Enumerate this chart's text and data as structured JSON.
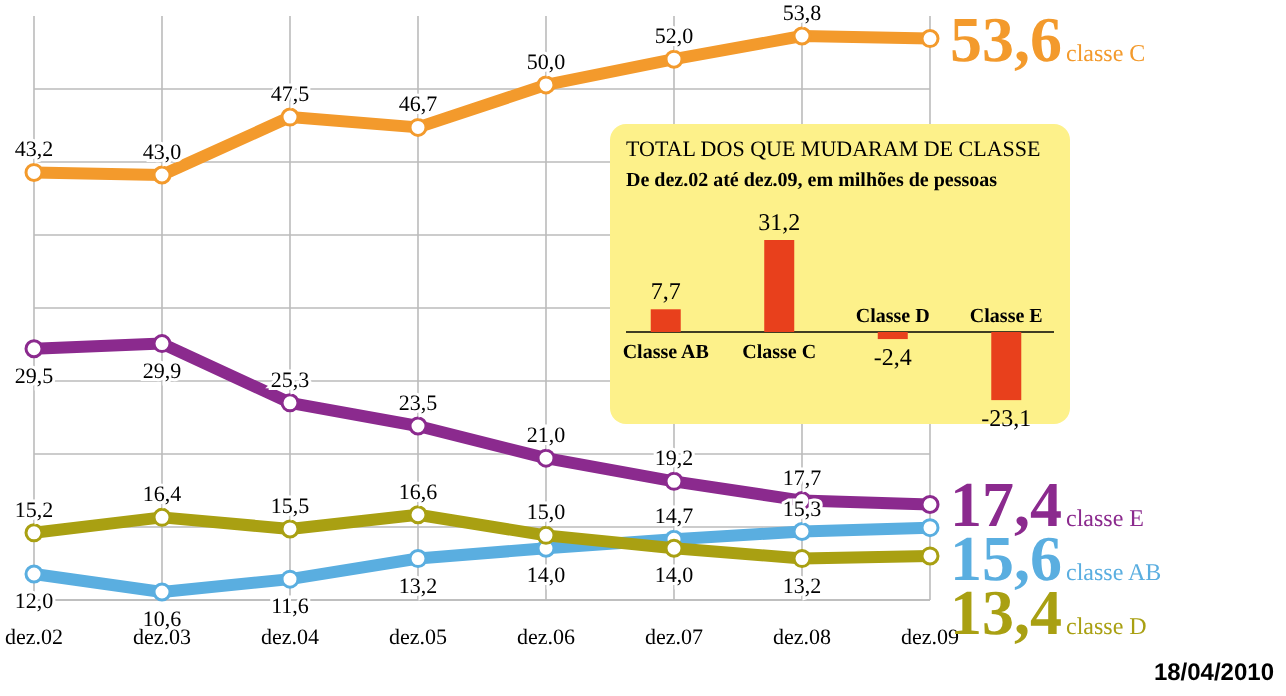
{
  "chart_data": [
    {
      "type": "line",
      "categories": [
        "dez.02",
        "dez.03",
        "dez.04",
        "dez.05",
        "dez.06",
        "dez.07",
        "dez.08",
        "dez.09"
      ],
      "series": [
        {
          "name": "classe C",
          "color": "#f39a2c",
          "values": [
            43.2,
            43.0,
            47.5,
            46.7,
            50.0,
            52.0,
            53.8,
            53.6
          ],
          "value_labels": [
            "43,2",
            "43,0",
            "47,5",
            "46,7",
            "50,0",
            "52,0",
            "53,8",
            "53,6"
          ]
        },
        {
          "name": "classe E",
          "color": "#8b2a8e",
          "values": [
            29.5,
            29.9,
            25.3,
            23.5,
            21.0,
            19.2,
            17.7,
            17.4
          ],
          "value_labels": [
            "29,5",
            "29,9",
            "25,3",
            "23,5",
            "21,0",
            "19,2",
            "17,7",
            "17,4"
          ]
        },
        {
          "name": "classe AB",
          "color": "#5aaee0",
          "values": [
            12.0,
            10.6,
            11.6,
            13.2,
            14.0,
            14.7,
            15.3,
            15.6
          ],
          "value_labels": [
            "12,0",
            "10,6",
            "11,6",
            "13,2",
            "14,0",
            "14,7",
            "15,3",
            "15,6"
          ]
        },
        {
          "name": "classe D",
          "color": "#a9a012",
          "values": [
            15.2,
            16.4,
            15.5,
            16.6,
            15.0,
            14.0,
            13.2,
            13.4
          ],
          "value_labels": [
            "15,2",
            "16,4",
            "15,5",
            "16,6",
            "15,0",
            "14,0",
            "13,2",
            "13,4"
          ]
        }
      ],
      "tick_labels": "x",
      "grid": true,
      "marker": "circle",
      "annotations": [
        "18/04/2010"
      ]
    },
    {
      "type": "bar",
      "title": "TOTAL DOS QUE MUDARAM DE CLASSE",
      "subtitle": "De dez.02 até dez.09, em milhões de pessoas",
      "categories": [
        "Classe AB",
        "Classe C",
        "Classe D",
        "Classe E"
      ],
      "values": [
        7.7,
        31.2,
        -2.4,
        -23.1
      ],
      "value_labels": [
        "7,7",
        "31,2",
        "-2,4",
        "-23,1"
      ],
      "color": "#e8401c"
    }
  ]
}
